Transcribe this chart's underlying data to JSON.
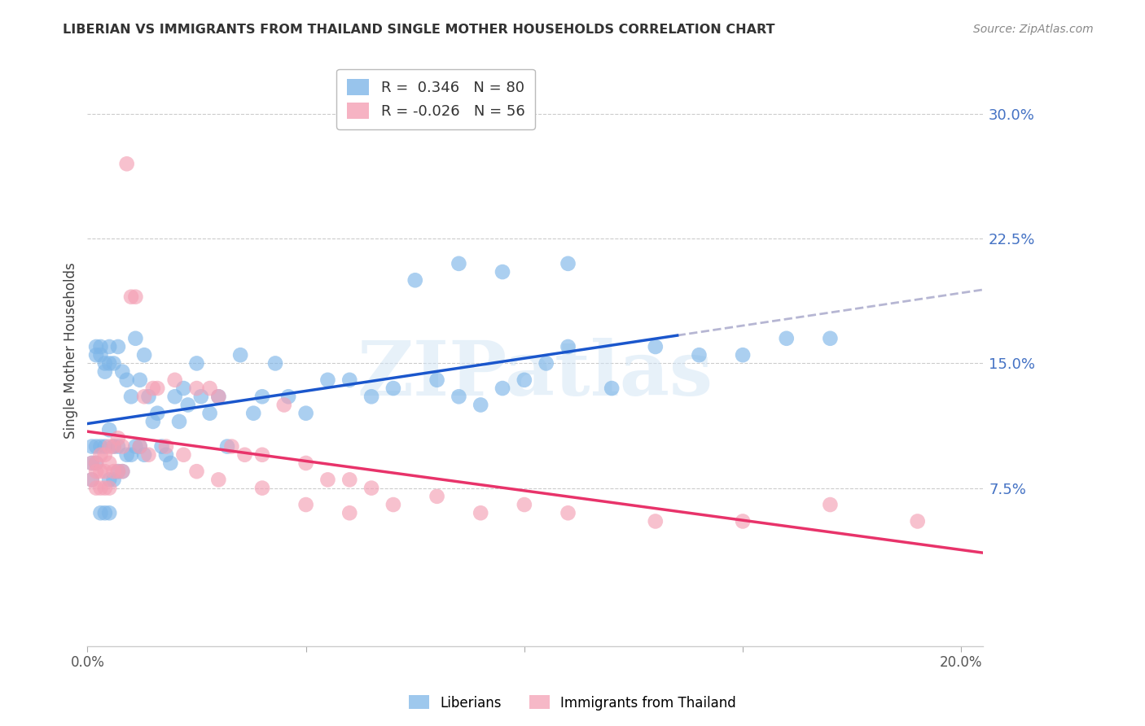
{
  "title": "LIBERIAN VS IMMIGRANTS FROM THAILAND SINGLE MOTHER HOUSEHOLDS CORRELATION CHART",
  "source": "Source: ZipAtlas.com",
  "ylabel": "Single Mother Households",
  "xlim": [
    0.0,
    0.205
  ],
  "ylim": [
    -0.02,
    0.335
  ],
  "yticks": [
    0.075,
    0.15,
    0.225,
    0.3
  ],
  "ytick_labels": [
    "7.5%",
    "15.0%",
    "22.5%",
    "30.0%"
  ],
  "xticks": [
    0.0,
    0.05,
    0.1,
    0.15,
    0.2
  ],
  "xtick_labels": [
    "0.0%",
    "",
    "",
    "",
    "20.0%"
  ],
  "liberian_color": "#7EB6E8",
  "thailand_color": "#F4A0B5",
  "liberian_R": 0.346,
  "liberian_N": 80,
  "thailand_R": -0.026,
  "thailand_N": 56,
  "regression_line_liberian_color": "#1A56CC",
  "regression_line_thailand_color": "#E8336A",
  "watermark": "ZIPatlas",
  "legend_label_liberian": "Liberians",
  "legend_label_thailand": "Immigrants from Thailand",
  "liberian_x": [
    0.001,
    0.001,
    0.001,
    0.002,
    0.002,
    0.002,
    0.002,
    0.003,
    0.003,
    0.003,
    0.003,
    0.004,
    0.004,
    0.004,
    0.004,
    0.005,
    0.005,
    0.005,
    0.005,
    0.005,
    0.006,
    0.006,
    0.006,
    0.007,
    0.007,
    0.007,
    0.008,
    0.008,
    0.009,
    0.009,
    0.01,
    0.01,
    0.011,
    0.011,
    0.012,
    0.012,
    0.013,
    0.013,
    0.014,
    0.015,
    0.016,
    0.017,
    0.018,
    0.019,
    0.02,
    0.021,
    0.022,
    0.023,
    0.025,
    0.026,
    0.028,
    0.03,
    0.032,
    0.035,
    0.038,
    0.04,
    0.043,
    0.046,
    0.05,
    0.055,
    0.06,
    0.065,
    0.07,
    0.075,
    0.08,
    0.085,
    0.09,
    0.095,
    0.1,
    0.105,
    0.11,
    0.12,
    0.13,
    0.14,
    0.15,
    0.16,
    0.17,
    0.11,
    0.095,
    0.085
  ],
  "liberian_y": [
    0.1,
    0.09,
    0.08,
    0.16,
    0.155,
    0.1,
    0.09,
    0.16,
    0.155,
    0.1,
    0.06,
    0.15,
    0.145,
    0.1,
    0.06,
    0.16,
    0.15,
    0.11,
    0.08,
    0.06,
    0.15,
    0.1,
    0.08,
    0.16,
    0.1,
    0.085,
    0.145,
    0.085,
    0.14,
    0.095,
    0.13,
    0.095,
    0.165,
    0.1,
    0.14,
    0.1,
    0.155,
    0.095,
    0.13,
    0.115,
    0.12,
    0.1,
    0.095,
    0.09,
    0.13,
    0.115,
    0.135,
    0.125,
    0.15,
    0.13,
    0.12,
    0.13,
    0.1,
    0.155,
    0.12,
    0.13,
    0.15,
    0.13,
    0.12,
    0.14,
    0.14,
    0.13,
    0.135,
    0.2,
    0.14,
    0.13,
    0.125,
    0.135,
    0.14,
    0.15,
    0.16,
    0.135,
    0.16,
    0.155,
    0.155,
    0.165,
    0.165,
    0.21,
    0.205,
    0.21
  ],
  "thailand_x": [
    0.001,
    0.001,
    0.002,
    0.002,
    0.002,
    0.003,
    0.003,
    0.003,
    0.004,
    0.004,
    0.004,
    0.005,
    0.005,
    0.005,
    0.006,
    0.006,
    0.007,
    0.007,
    0.008,
    0.008,
    0.009,
    0.01,
    0.011,
    0.012,
    0.013,
    0.014,
    0.015,
    0.016,
    0.018,
    0.02,
    0.022,
    0.025,
    0.028,
    0.03,
    0.033,
    0.036,
    0.04,
    0.045,
    0.05,
    0.055,
    0.06,
    0.065,
    0.07,
    0.08,
    0.09,
    0.1,
    0.11,
    0.13,
    0.15,
    0.17,
    0.19,
    0.025,
    0.03,
    0.04,
    0.05,
    0.06
  ],
  "thailand_y": [
    0.09,
    0.08,
    0.09,
    0.085,
    0.075,
    0.095,
    0.085,
    0.075,
    0.095,
    0.085,
    0.075,
    0.1,
    0.09,
    0.075,
    0.1,
    0.085,
    0.105,
    0.085,
    0.1,
    0.085,
    0.27,
    0.19,
    0.19,
    0.1,
    0.13,
    0.095,
    0.135,
    0.135,
    0.1,
    0.14,
    0.095,
    0.135,
    0.135,
    0.13,
    0.1,
    0.095,
    0.095,
    0.125,
    0.09,
    0.08,
    0.08,
    0.075,
    0.065,
    0.07,
    0.06,
    0.065,
    0.06,
    0.055,
    0.055,
    0.065,
    0.055,
    0.085,
    0.08,
    0.075,
    0.065,
    0.06
  ]
}
